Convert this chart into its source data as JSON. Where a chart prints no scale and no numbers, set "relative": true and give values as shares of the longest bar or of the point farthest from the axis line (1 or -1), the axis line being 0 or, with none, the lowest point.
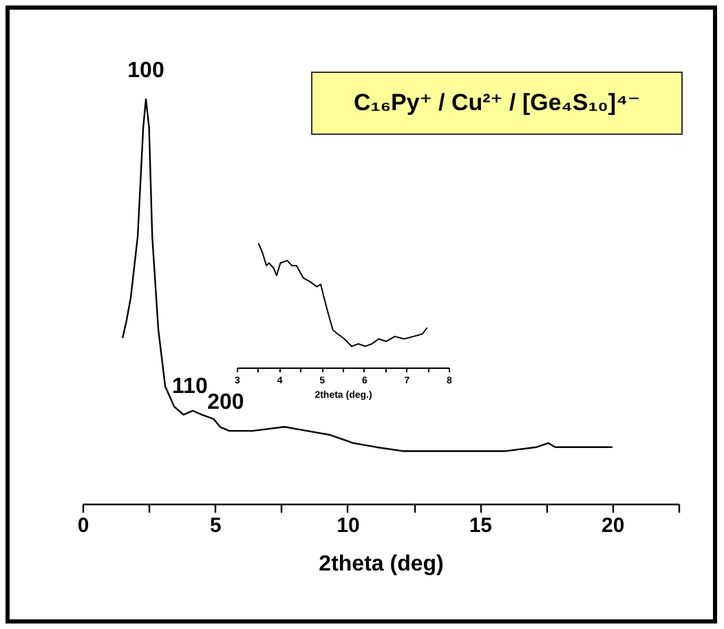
{
  "chart_data": [
    {
      "type": "line",
      "title": "C₁₆Py⁺ / Cu²⁺ / [Ge₄S₁₀]⁴⁻",
      "xlabel": "2theta (deg)",
      "relative": true,
      "xlim": [
        0,
        22.5
      ],
      "xticks": [
        0,
        {
          "value": 2.5,
          "label": null
        },
        5,
        {
          "value": 7.5,
          "label": null
        },
        10,
        {
          "value": 12.5,
          "label": null
        },
        15,
        {
          "value": 17.5,
          "label": null
        },
        20,
        {
          "value": 22.5,
          "label": null
        }
      ],
      "x": [
        1.51,
        1.65,
        1.82,
        2.08,
        2.29,
        2.39,
        2.51,
        2.63,
        2.86,
        3.12,
        3.46,
        3.81,
        4.16,
        4.5,
        4.94,
        5.19,
        5.54,
        6.41,
        7.62,
        8.48,
        9.35,
        10.22,
        11.08,
        12.12,
        13.16,
        14.55,
        15.93,
        17.14,
        17.58,
        17.84,
        18.87,
        20.0
      ],
      "series": [
        {
          "color": "#000000",
          "values": [
            0.41,
            0.45,
            0.51,
            0.66,
            0.93,
            1.0,
            0.93,
            0.66,
            0.43,
            0.29,
            0.24,
            0.22,
            0.23,
            0.22,
            0.21,
            0.19,
            0.18,
            0.18,
            0.19,
            0.18,
            0.17,
            0.15,
            0.14,
            0.13,
            0.13,
            0.13,
            0.13,
            0.14,
            0.15,
            0.14,
            0.14,
            0.14
          ]
        }
      ],
      "annotations": [
        {
          "text": "100",
          "x": 2.39,
          "y": 1.0
        },
        {
          "text": "110",
          "x": 4.05,
          "y": 0.22
        },
        {
          "text": "200",
          "x": 5.4,
          "y": 0.18
        }
      ]
    },
    {
      "type": "line",
      "xlabel": "2theta (deg.)",
      "relative": true,
      "xlim": [
        3,
        8
      ],
      "xticks": [
        3,
        {
          "value": 3.5,
          "label": null
        },
        4,
        {
          "value": 4.5,
          "label": null
        },
        5,
        {
          "value": 5.5,
          "label": null
        },
        6,
        {
          "value": 6.5,
          "label": null
        },
        7,
        {
          "value": 7.5,
          "label": null
        },
        8
      ],
      "x": [
        3.51,
        3.6,
        3.7,
        3.76,
        3.87,
        3.94,
        4.03,
        4.19,
        4.3,
        4.41,
        4.57,
        4.73,
        4.89,
        4.98,
        5.06,
        5.16,
        5.27,
        5.38,
        5.54,
        5.71,
        5.87,
        6.03,
        6.19,
        6.35,
        6.52,
        6.73,
        6.95,
        7.17,
        7.38,
        7.49
      ],
      "series": [
        {
          "color": "#000000",
          "values": [
            1.0,
            0.93,
            0.82,
            0.84,
            0.8,
            0.74,
            0.84,
            0.86,
            0.82,
            0.82,
            0.72,
            0.69,
            0.65,
            0.67,
            0.56,
            0.43,
            0.3,
            0.27,
            0.23,
            0.17,
            0.19,
            0.17,
            0.19,
            0.23,
            0.21,
            0.25,
            0.23,
            0.25,
            0.27,
            0.32
          ]
        }
      ]
    }
  ]
}
